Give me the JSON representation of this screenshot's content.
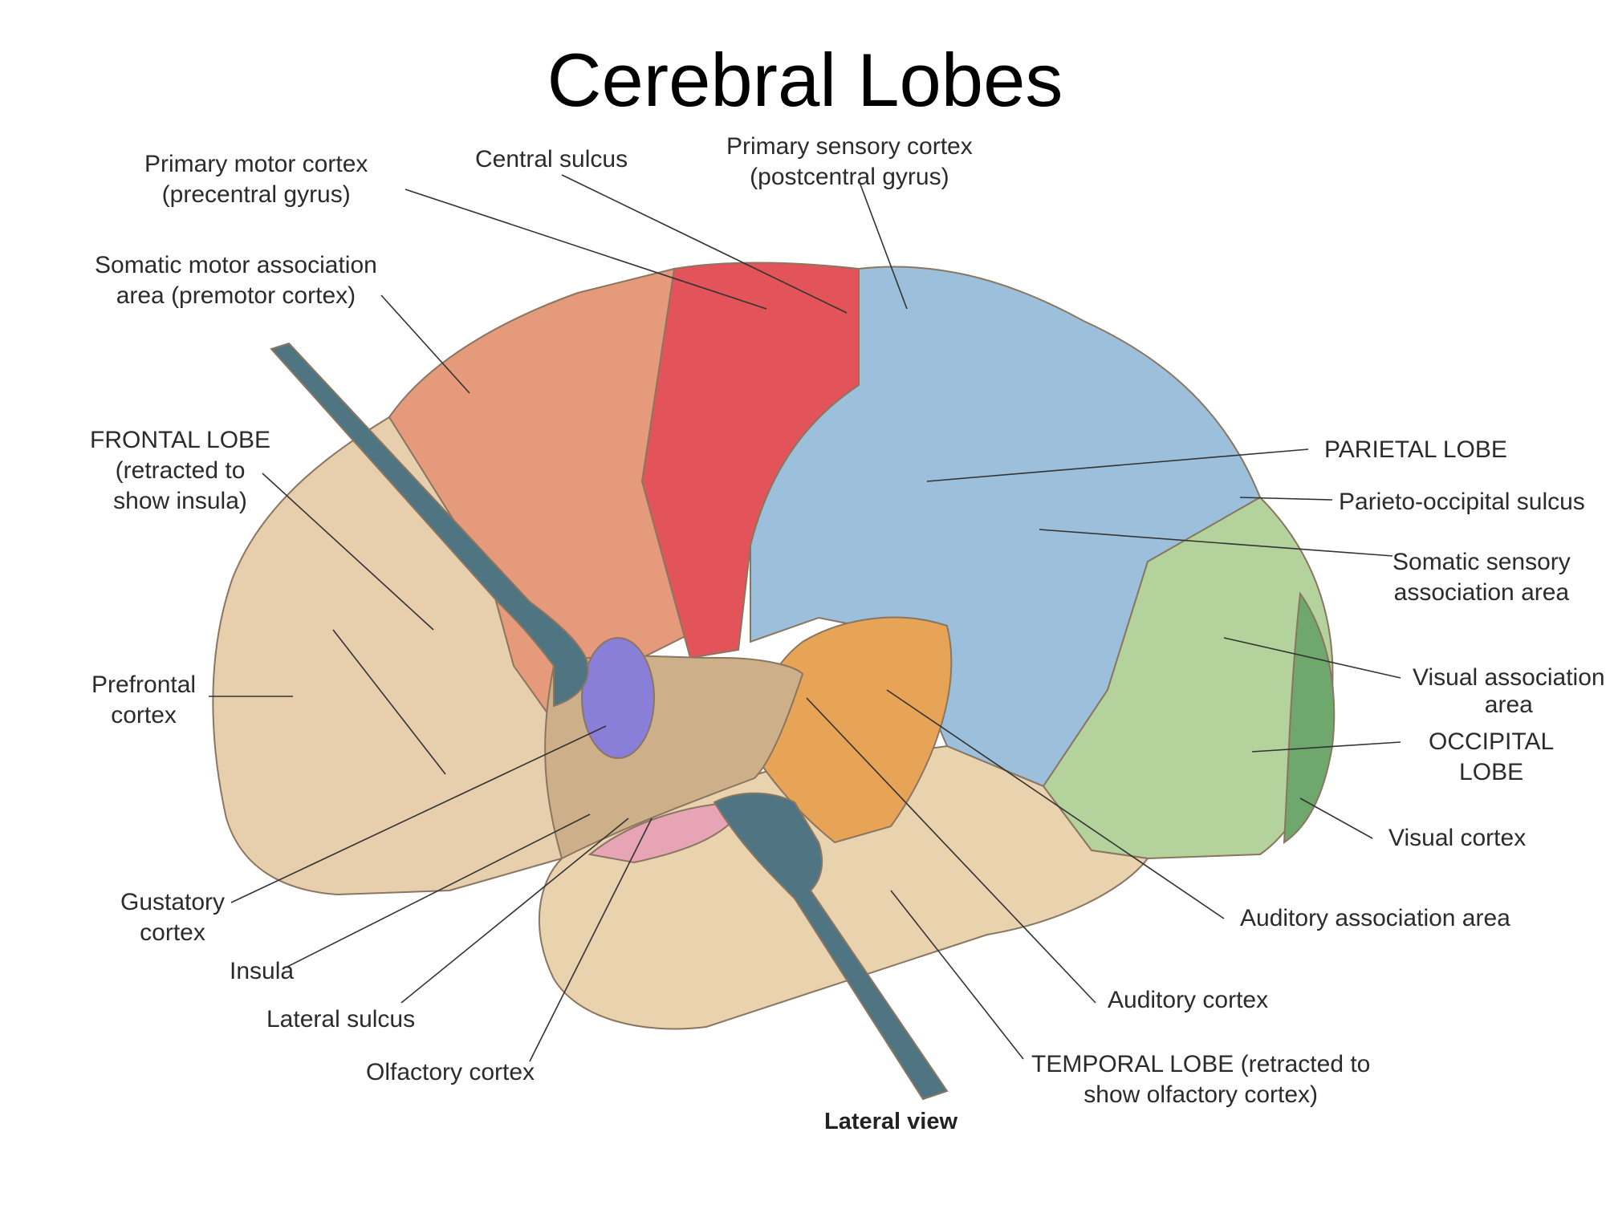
{
  "title": "Cerebral Lobes",
  "caption": "Lateral view",
  "colors": {
    "frontal": "#e7cfae",
    "premotor": "#e59a7c",
    "primary_motor": "#e2545a",
    "parietal": "#9cc0dc",
    "occipital": "#b4d39c",
    "visual_cortex": "#6ea86c",
    "temporal": "#e9d2ae",
    "auditory": "#e8a456",
    "gustatory": "#8a7fd8",
    "olfactory": "#e6a4b4",
    "retractor": "#4f7482"
  },
  "labels": {
    "primary_motor": [
      "Primary motor cortex",
      "(precentral gyrus)"
    ],
    "central_sulcus": [
      "Central sulcus"
    ],
    "primary_sensory": [
      "Primary sensory cortex",
      "(postcentral gyrus)"
    ],
    "somatic_motor": [
      "Somatic motor association",
      "area (premotor cortex)"
    ],
    "frontal_lobe": [
      "FRONTAL LOBE",
      "(retracted to",
      "show insula)"
    ],
    "prefrontal": [
      "Prefrontal",
      "cortex"
    ],
    "gustatory": [
      "Gustatory",
      "cortex"
    ],
    "insula": [
      "Insula"
    ],
    "lateral_sulcus": [
      "Lateral sulcus"
    ],
    "olfactory": [
      "Olfactory cortex"
    ],
    "parietal_lobe": [
      "PARIETAL LOBE"
    ],
    "parieto_occipital": [
      "Parieto-occipital sulcus"
    ],
    "somatic_sensory": [
      "Somatic sensory",
      "association area"
    ],
    "visual_association": [
      "Visual association",
      "area"
    ],
    "occipital_lobe": [
      "OCCIPITAL",
      "LOBE"
    ],
    "visual_cortex": [
      "Visual cortex"
    ],
    "auditory_association": [
      "Auditory association area"
    ],
    "auditory_cortex": [
      "Auditory cortex"
    ],
    "temporal_lobe": [
      "TEMPORAL LOBE (retracted to",
      "show olfactory cortex)"
    ]
  }
}
